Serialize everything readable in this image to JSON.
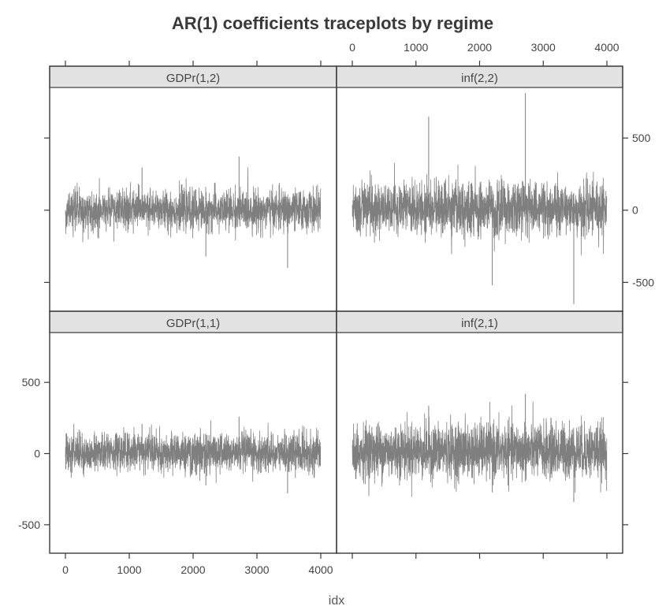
{
  "chart_data": {
    "type": "line",
    "title": "AR(1) coefficients traceplots by regime",
    "xlabel": "idx",
    "ylabel": "",
    "xlim": [
      0,
      4000
    ],
    "ylim": [
      -700,
      850
    ],
    "x_ticks": [
      "0",
      "1000",
      "2000",
      "3000",
      "4000"
    ],
    "y_ticks": [
      "-500",
      "0",
      "500"
    ],
    "x_tick_values": [
      0,
      1000,
      2000,
      3000,
      4000
    ],
    "y_tick_values": [
      -500,
      0,
      500
    ],
    "n_draws": 4000,
    "grid": false,
    "layout": "2x2 lattice",
    "line_color": "#7f7f7f",
    "strip_color": "#e2e2e2",
    "panels": [
      {
        "name": "GDPr(1,2)",
        "row": "top",
        "col": "left",
        "typical_range": [
          -180,
          180
        ],
        "max": 370,
        "min": -400
      },
      {
        "name": "inf(2,2)",
        "row": "top",
        "col": "right",
        "typical_range": [
          -230,
          250
        ],
        "max": 810,
        "min": -650
      },
      {
        "name": "GDPr(1,1)",
        "row": "bottom",
        "col": "left",
        "typical_range": [
          -170,
          180
        ],
        "max": 260,
        "min": -280
      },
      {
        "name": "inf(2,1)",
        "row": "bottom",
        "col": "right",
        "typical_range": [
          -230,
          270
        ],
        "max": 420,
        "min": -340
      }
    ]
  }
}
